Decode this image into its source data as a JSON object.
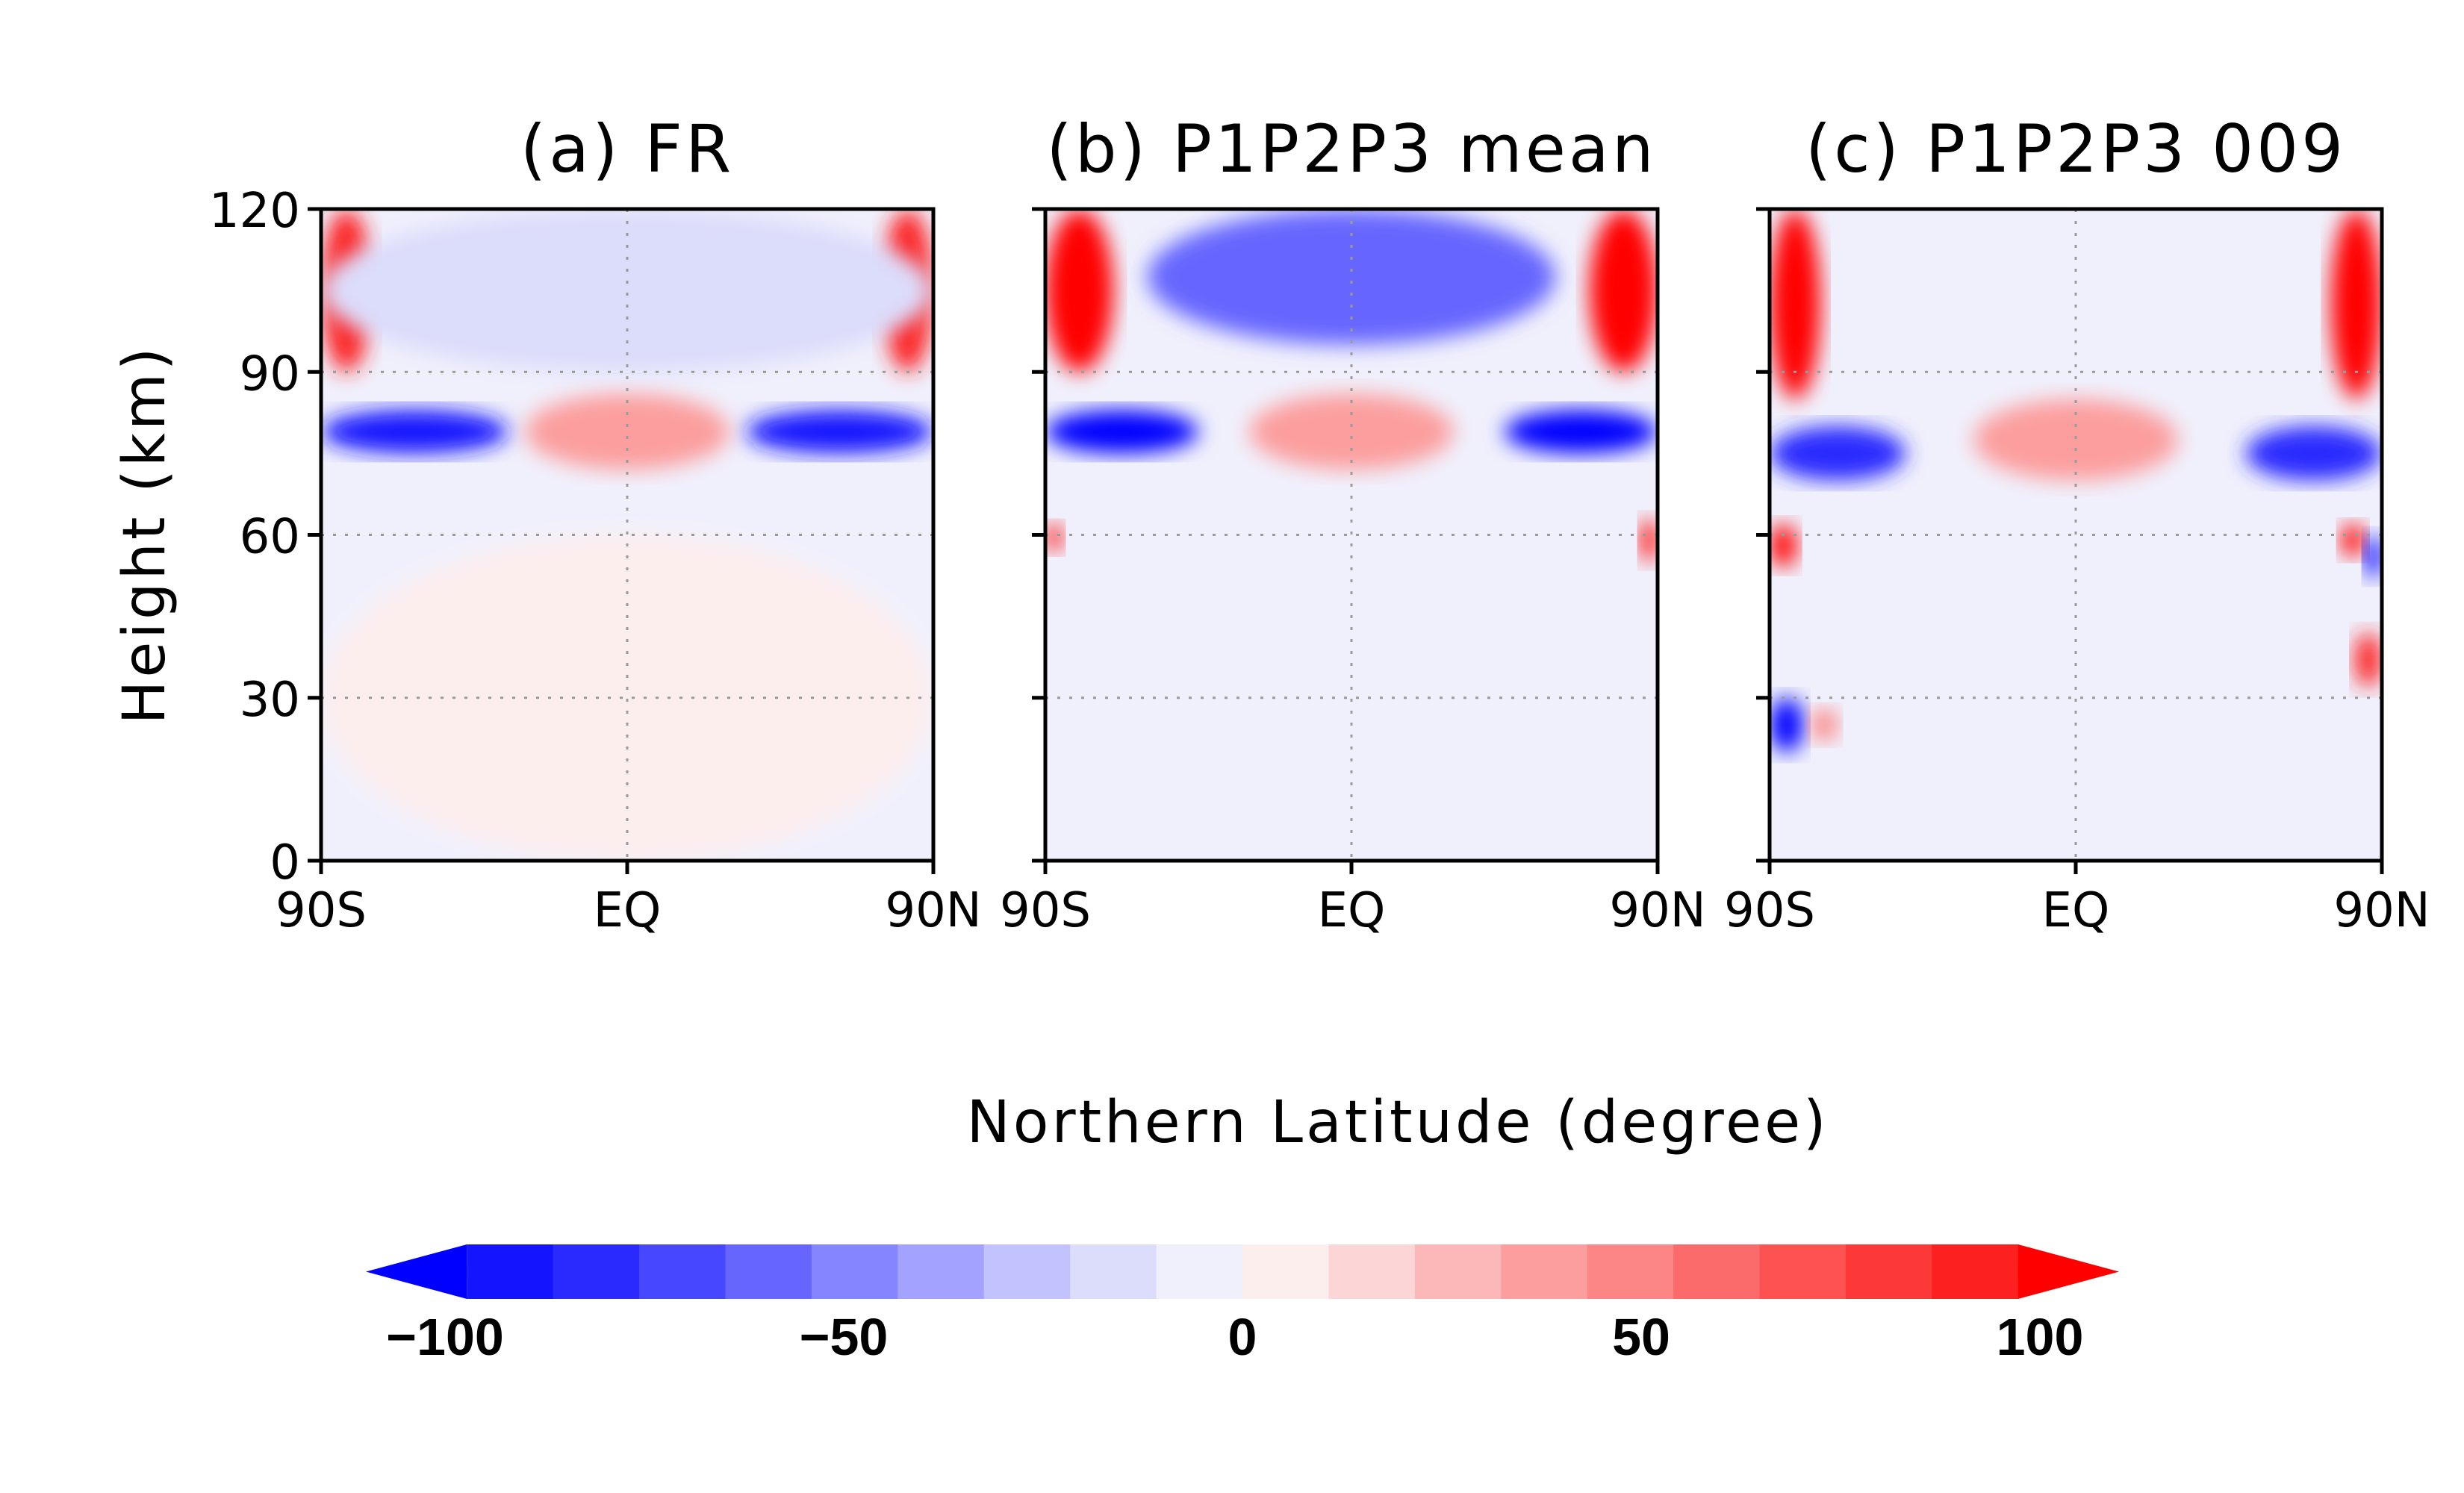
{
  "chart_data": [
    {
      "type": "heatmap",
      "title": "(a) FR",
      "x_ticks": [
        "90S",
        "EQ",
        "90N"
      ],
      "y_ticks": [
        0,
        30,
        60,
        90,
        120
      ],
      "xlim": [
        -90,
        90
      ],
      "ylim": [
        0,
        120
      ],
      "grid": "dotted at 30, 60, 90 km and at EQ",
      "features": [
        {
          "lat": [
            -90,
            -75
          ],
          "height": [
            90,
            120
          ],
          "value": 80
        },
        {
          "lat": [
            75,
            90
          ],
          "height": [
            90,
            120
          ],
          "value": 80
        },
        {
          "lat": [
            -90,
            -35
          ],
          "height": [
            75,
            83
          ],
          "value": -85
        },
        {
          "lat": [
            35,
            90
          ],
          "height": [
            75,
            83
          ],
          "value": -85
        },
        {
          "lat": [
            -30,
            30
          ],
          "height": [
            72,
            86
          ],
          "value": 35
        },
        {
          "lat": [
            -90,
            90
          ],
          "height": [
            90,
            120
          ],
          "value": -15
        },
        {
          "lat": [
            -90,
            90
          ],
          "height": [
            0,
            60
          ],
          "value": 5
        }
      ]
    },
    {
      "type": "heatmap",
      "title": "(b) P1P2P3 mean",
      "x_ticks": [
        "90S",
        "EQ",
        "90N"
      ],
      "y_ticks": [
        0,
        30,
        60,
        90,
        120
      ],
      "xlim": [
        -90,
        90
      ],
      "ylim": [
        0,
        120
      ],
      "grid": "dotted at 30, 60, 90 km and at EQ",
      "features": [
        {
          "lat": [
            -90,
            -70
          ],
          "height": [
            90,
            120
          ],
          "value": 100
        },
        {
          "lat": [
            70,
            90
          ],
          "height": [
            90,
            120
          ],
          "value": 100
        },
        {
          "lat": [
            -90,
            -45
          ],
          "height": [
            75,
            83
          ],
          "value": -95
        },
        {
          "lat": [
            45,
            90
          ],
          "height": [
            75,
            83
          ],
          "value": -95
        },
        {
          "lat": [
            -30,
            30
          ],
          "height": [
            72,
            86
          ],
          "value": 30
        },
        {
          "lat": [
            -60,
            60
          ],
          "height": [
            95,
            120
          ],
          "value": -60
        },
        {
          "lat": [
            -90,
            -85
          ],
          "height": [
            57,
            62
          ],
          "value": 100
        },
        {
          "lat": [
            85,
            90
          ],
          "height": [
            55,
            63
          ],
          "value": 100
        }
      ]
    },
    {
      "type": "heatmap",
      "title": "(c) P1P2P3 009",
      "x_ticks": [
        "90S",
        "EQ",
        "90N"
      ],
      "y_ticks": [
        0,
        30,
        60,
        90,
        120
      ],
      "xlim": [
        -90,
        90
      ],
      "ylim": [
        0,
        120
      ],
      "grid": "dotted at 30, 60, 90 km and at EQ",
      "features": [
        {
          "lat": [
            -90,
            -75
          ],
          "height": [
            85,
            120
          ],
          "value": 100
        },
        {
          "lat": [
            75,
            90
          ],
          "height": [
            85,
            120
          ],
          "value": 100
        },
        {
          "lat": [
            -90,
            -50
          ],
          "height": [
            70,
            80
          ],
          "value": -80
        },
        {
          "lat": [
            50,
            90
          ],
          "height": [
            70,
            80
          ],
          "value": -80
        },
        {
          "lat": [
            -30,
            30
          ],
          "height": [
            70,
            85
          ],
          "value": 35
        },
        {
          "lat": [
            -90,
            -80
          ],
          "height": [
            20,
            30
          ],
          "value": -95
        },
        {
          "lat": [
            -78,
            -70
          ],
          "height": [
            22,
            28
          ],
          "value": 40
        },
        {
          "lat": [
            -90,
            -82
          ],
          "height": [
            54,
            62
          ],
          "value": 90
        },
        {
          "lat": [
            78,
            85
          ],
          "height": [
            56,
            62
          ],
          "value": 100
        },
        {
          "lat": [
            85,
            90
          ],
          "height": [
            52,
            60
          ],
          "value": -100
        },
        {
          "lat": [
            82,
            90
          ],
          "height": [
            32,
            42
          ],
          "value": 80
        }
      ]
    }
  ],
  "axes": {
    "ylabel": "Height (km)",
    "xlabel": "Northern Latitude (degree)"
  },
  "colorbar": {
    "labels": [
      "−100",
      "−50",
      "0",
      "50",
      "100"
    ],
    "label_values": [
      -100,
      -50,
      0,
      50,
      100
    ],
    "colors": [
      "#0000ff",
      "#1414ff",
      "#2a2aff",
      "#4747ff",
      "#6666ff",
      "#8585ff",
      "#a3a3ff",
      "#c2c2ff",
      "#dcdcfb",
      "#f0f0fc",
      "#fdeeee",
      "#fcd6d6",
      "#fcb8b8",
      "#fc9e9e",
      "#fc8585",
      "#fc6b6b",
      "#fc5252",
      "#fc3838",
      "#fc2020",
      "#ff0000"
    ]
  }
}
